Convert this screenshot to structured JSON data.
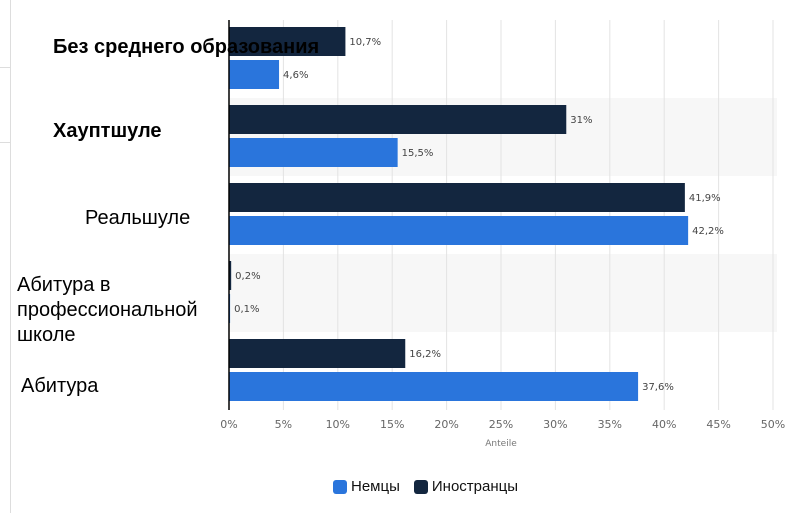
{
  "chart_data": {
    "type": "bar",
    "orientation": "horizontal",
    "categories": [
      "Без среднего образования",
      "Хауптшуле",
      "Реальшуле",
      "Абитура в профессиональной школе",
      "Абитура"
    ],
    "series": [
      {
        "name": "Иностранцы",
        "color": "#13263f",
        "values": [
          10.7,
          31,
          41.9,
          0.2,
          16.2
        ],
        "labels": [
          "10,7%",
          "31%",
          "41,9%",
          "0,2%",
          "16,2%"
        ]
      },
      {
        "name": "Немцы",
        "color": "#2a75dc",
        "values": [
          4.6,
          15.5,
          42.2,
          0.1,
          37.6
        ],
        "labels": [
          "4,6%",
          "15,5%",
          "42,2%",
          "0,1%",
          "37,6%"
        ]
      }
    ],
    "xlabel": "Anteile",
    "xlim": [
      0,
      50
    ],
    "xticks": [
      "0%",
      "5%",
      "10%",
      "15%",
      "20%",
      "25%",
      "30%",
      "35%",
      "40%",
      "45%",
      "50%"
    ],
    "grid": true,
    "legend_position": "bottom",
    "legend": [
      "Немцы",
      "Иностранцы"
    ]
  }
}
